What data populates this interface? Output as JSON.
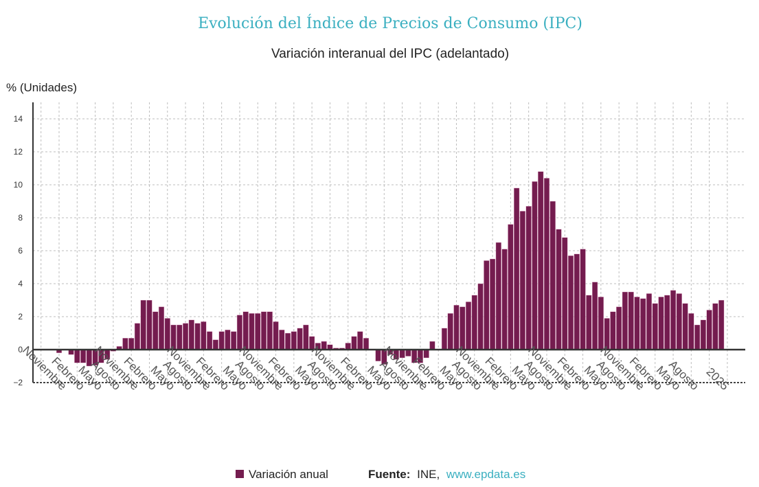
{
  "chart_data": {
    "type": "bar",
    "title": "Evolución del Índice de Precios de Consumo (IPC)",
    "subtitle": "Variación interanual del IPC (adelantado)",
    "ylabel": "% (Unidades)",
    "ylim": [
      -2,
      15
    ],
    "yticks": [
      -2,
      0,
      2,
      4,
      6,
      8,
      10,
      12,
      14
    ],
    "grid": true,
    "legend_position": "bottom",
    "start_month": "2015-11",
    "series": [
      {
        "name": "Variación anual",
        "color": "#741c4f",
        "values": [
          -0.2,
          0.0,
          -0.3,
          -0.8,
          -0.8,
          -1.0,
          -0.95,
          -0.8,
          -0.6,
          -0.1,
          0.2,
          0.7,
          0.7,
          1.6,
          3.0,
          3.0,
          2.3,
          2.6,
          1.9,
          1.5,
          1.5,
          1.6,
          1.8,
          1.6,
          1.7,
          1.1,
          0.6,
          1.1,
          1.2,
          1.1,
          2.1,
          2.3,
          2.2,
          2.2,
          2.3,
          2.3,
          1.7,
          1.2,
          1.0,
          1.1,
          1.3,
          1.5,
          0.8,
          0.4,
          0.5,
          0.3,
          0.1,
          0.1,
          0.4,
          0.8,
          1.1,
          0.7,
          0.0,
          -0.7,
          -0.9,
          -0.3,
          -0.6,
          -0.5,
          -0.4,
          -0.8,
          -0.8,
          -0.5,
          0.5,
          0.0,
          1.3,
          2.2,
          2.7,
          2.6,
          2.9,
          3.3,
          4.0,
          5.4,
          5.5,
          6.5,
          6.1,
          7.6,
          9.8,
          8.4,
          8.7,
          10.2,
          10.8,
          10.4,
          9.0,
          7.3,
          6.8,
          5.7,
          5.8,
          6.1,
          3.3,
          4.1,
          3.2,
          1.9,
          2.3,
          2.6,
          3.5,
          3.5,
          3.2,
          3.1,
          3.4,
          2.8,
          3.2,
          3.3,
          3.6,
          3.4,
          2.8,
          2.2,
          1.5,
          1.8,
          2.4,
          2.8,
          3.0
        ]
      }
    ],
    "xtick_labels": [
      {
        "month": "2015-11",
        "label": "Noviembre"
      },
      {
        "month": "2016-02",
        "label": "Febrero"
      },
      {
        "month": "2016-05",
        "label": "Mayo"
      },
      {
        "month": "2016-08",
        "label": "Agosto"
      },
      {
        "month": "2016-11",
        "label": "Noviembre"
      },
      {
        "month": "2017-02",
        "label": "Febrero"
      },
      {
        "month": "2017-05",
        "label": "Mayo"
      },
      {
        "month": "2017-08",
        "label": "Agosto"
      },
      {
        "month": "2017-11",
        "label": "Noviembre"
      },
      {
        "month": "2018-02",
        "label": "Febrero"
      },
      {
        "month": "2018-05",
        "label": "Mayo"
      },
      {
        "month": "2018-08",
        "label": "Agosto"
      },
      {
        "month": "2018-11",
        "label": "Noviembre"
      },
      {
        "month": "2019-02",
        "label": "Febrero"
      },
      {
        "month": "2019-05",
        "label": "Mayo"
      },
      {
        "month": "2019-08",
        "label": "Agosto"
      },
      {
        "month": "2019-11",
        "label": "Noviembre"
      },
      {
        "month": "2020-02",
        "label": "Febrero"
      },
      {
        "month": "2020-05",
        "label": "Mayo"
      },
      {
        "month": "2020-08",
        "label": "Agosto"
      },
      {
        "month": "2020-11",
        "label": "Noviembre"
      },
      {
        "month": "2021-02",
        "label": "Febrero"
      },
      {
        "month": "2021-05",
        "label": "Mayo"
      },
      {
        "month": "2021-08",
        "label": "Agosto"
      },
      {
        "month": "2021-11",
        "label": "Noviembre"
      },
      {
        "month": "2022-02",
        "label": "Febrero"
      },
      {
        "month": "2022-05",
        "label": "Mayo"
      },
      {
        "month": "2022-08",
        "label": "Agosto"
      },
      {
        "month": "2022-11",
        "label": "Noviembre"
      },
      {
        "month": "2023-02",
        "label": "Febrero"
      },
      {
        "month": "2023-05",
        "label": "Mayo"
      },
      {
        "month": "2023-08",
        "label": "Agosto"
      },
      {
        "month": "2023-11",
        "label": "Noviembre"
      },
      {
        "month": "2024-02",
        "label": "Febrero"
      },
      {
        "month": "2024-05",
        "label": "Mayo"
      },
      {
        "month": "2024-08",
        "label": "Agosto"
      },
      {
        "month": "2025-01",
        "label": "2025"
      }
    ]
  },
  "legend": {
    "series_label": "Variación anual"
  },
  "source": {
    "label": "Fuente:",
    "value": "INE,",
    "link": "www.epdata.es",
    "link_color": "#3aafc0"
  }
}
